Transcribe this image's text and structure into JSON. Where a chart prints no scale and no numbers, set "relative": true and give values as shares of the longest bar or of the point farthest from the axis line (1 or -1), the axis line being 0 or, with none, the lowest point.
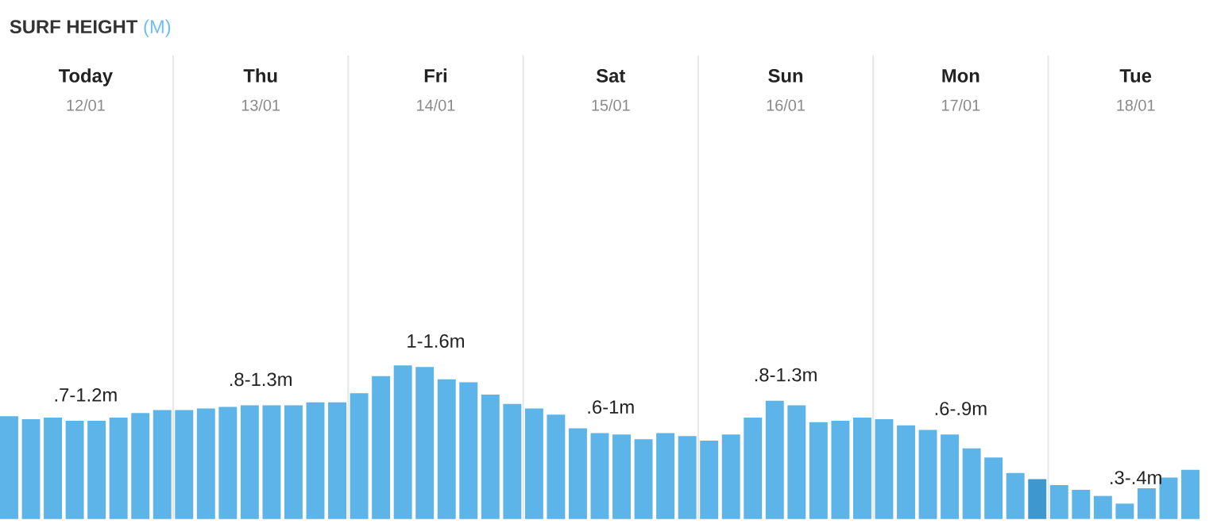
{
  "chart_data": {
    "type": "bar",
    "title": "SURF HEIGHT",
    "subtitle": "(M)",
    "relative": true,
    "categories": [
      null,
      null,
      null,
      null,
      null,
      null,
      null,
      null,
      null,
      null,
      null,
      null,
      null,
      null,
      null,
      null,
      null,
      null,
      null,
      null,
      null,
      null,
      null,
      null,
      null,
      null,
      null,
      null,
      null,
      null,
      null,
      null,
      null,
      null,
      null,
      null,
      null,
      null,
      null,
      null,
      null,
      null,
      null,
      null,
      null,
      null,
      null,
      null,
      null,
      null,
      null,
      null,
      null,
      null,
      null
    ],
    "values": [
      0.67,
      0.65,
      0.66,
      0.64,
      0.64,
      0.66,
      0.69,
      0.71,
      0.71,
      0.72,
      0.73,
      0.74,
      0.74,
      0.74,
      0.76,
      0.76,
      0.82,
      0.93,
      1.0,
      0.99,
      0.91,
      0.89,
      0.81,
      0.75,
      0.72,
      0.68,
      0.59,
      0.56,
      0.55,
      0.52,
      0.56,
      0.54,
      0.51,
      0.55,
      0.66,
      0.77,
      0.74,
      0.63,
      0.64,
      0.66,
      0.65,
      0.61,
      0.58,
      0.55,
      0.46,
      0.4,
      0.3,
      0.26,
      0.22,
      0.19,
      0.15,
      0.1,
      0.2,
      0.27,
      0.32
    ],
    "colors": [
      "#5db4e8",
      "#5db4e8",
      "#5db4e8",
      "#5db4e8",
      "#5db4e8",
      "#5db4e8",
      "#5db4e8",
      "#5db4e8",
      "#5db4e8",
      "#5db4e8",
      "#5db4e8",
      "#5db4e8",
      "#5db4e8",
      "#5db4e8",
      "#5db4e8",
      "#5db4e8",
      "#5db4e8",
      "#5db4e8",
      "#5db4e8",
      "#5db4e8",
      "#5db4e8",
      "#5db4e8",
      "#5db4e8",
      "#5db4e8",
      "#5db4e8",
      "#5db4e8",
      "#5db4e8",
      "#5db4e8",
      "#5db4e8",
      "#5db4e8",
      "#5db4e8",
      "#5db4e8",
      "#5db4e8",
      "#5db4e8",
      "#5db4e8",
      "#5db4e8",
      "#5db4e8",
      "#5db4e8",
      "#5db4e8",
      "#5db4e8",
      "#5db4e8",
      "#5db4e8",
      "#5db4e8",
      "#5db4e8",
      "#5db4e8",
      "#5db4e8",
      "#5db4e8",
      "#3f97d0",
      "#5db4e8",
      "#5db4e8",
      "#5db4e8",
      "#5db4e8",
      "#5db4e8",
      "#5db4e8",
      "#5db4e8"
    ],
    "annotations": [
      "Today",
      "Thu",
      "Fri",
      "Sat",
      "Sun",
      "Mon",
      "Tue",
      "12/01",
      "13/01",
      "14/01",
      "15/01",
      "16/01",
      "17/01",
      "18/01",
      ".7-1.2m",
      ".8-1.3m",
      "1-1.6m",
      ".6-1m",
      ".8-1.3m",
      ".6-.9m",
      ".3-.4m"
    ]
  }
}
